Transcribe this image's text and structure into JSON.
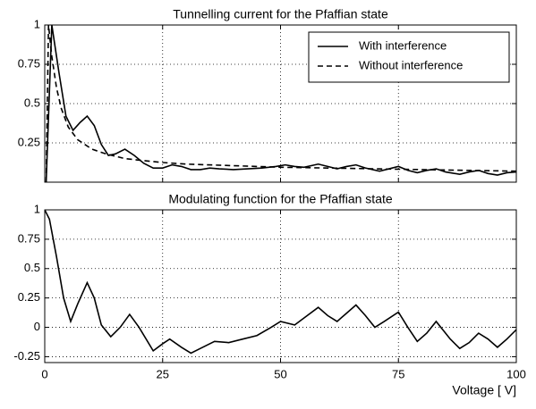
{
  "chart_data": [
    {
      "type": "line",
      "title": "Tunnelling current for the Pfaffian state",
      "xlim": [
        0,
        100
      ],
      "xticks": [
        0,
        25,
        50,
        75,
        100
      ],
      "xtick_labels": false,
      "ylim": [
        0,
        1
      ],
      "yticks": [
        0.25,
        0.5,
        0.75,
        1
      ],
      "grid": true,
      "legend": "upper right",
      "series": [
        {
          "name": "With interference",
          "color": "#000000",
          "dash": "solid",
          "x": [
            0.3,
            1.5,
            3,
            4.5,
            6,
            7.5,
            9,
            10.5,
            12,
            13.5,
            15,
            17,
            19,
            21,
            23,
            25,
            27,
            29,
            31,
            33,
            35,
            37,
            40,
            43,
            46,
            49,
            51,
            53,
            55,
            58,
            60,
            62,
            64,
            66,
            68,
            71,
            73,
            75,
            77,
            79,
            81,
            83,
            85,
            88,
            90,
            92,
            94,
            96,
            98,
            100
          ],
          "values": [
            0,
            1,
            0.7,
            0.42,
            0.33,
            0.38,
            0.42,
            0.36,
            0.24,
            0.17,
            0.18,
            0.21,
            0.17,
            0.12,
            0.09,
            0.09,
            0.11,
            0.1,
            0.08,
            0.08,
            0.09,
            0.085,
            0.08,
            0.085,
            0.09,
            0.1,
            0.11,
            0.1,
            0.095,
            0.115,
            0.1,
            0.085,
            0.1,
            0.11,
            0.09,
            0.07,
            0.085,
            0.1,
            0.075,
            0.06,
            0.075,
            0.085,
            0.065,
            0.05,
            0.065,
            0.075,
            0.055,
            0.045,
            0.06,
            0.065
          ]
        },
        {
          "name": "Without interference",
          "color": "#000000",
          "dash": "dashed",
          "x": [
            0.3,
            0.8,
            1.5,
            2.5,
            3.5,
            5,
            7,
            10,
            13,
            17,
            20,
            25,
            30,
            40,
            50,
            60,
            70,
            80,
            90,
            100
          ],
          "values": [
            0,
            1,
            0.8,
            0.6,
            0.47,
            0.35,
            0.27,
            0.21,
            0.18,
            0.15,
            0.14,
            0.125,
            0.115,
            0.105,
            0.095,
            0.09,
            0.085,
            0.08,
            0.075,
            0.07
          ]
        }
      ]
    },
    {
      "type": "line",
      "title": "Modulating function for the Pfaffian state",
      "xlabel": "Voltage [  V]",
      "xlim": [
        0,
        100
      ],
      "xticks": [
        0,
        25,
        50,
        75,
        100
      ],
      "xtick_labels": true,
      "ylim": [
        -0.3,
        1
      ],
      "yticks": [
        -0.25,
        0,
        0.25,
        0.5,
        0.75,
        1
      ],
      "grid": true,
      "series": [
        {
          "color": "#000000",
          "dash": "solid",
          "x": [
            0,
            1,
            2.5,
            4,
            5.5,
            7,
            9,
            10.5,
            12,
            14,
            16,
            18,
            20,
            23,
            25,
            26.5,
            29,
            31,
            33,
            36,
            39,
            42,
            45,
            48,
            50,
            53,
            55,
            58,
            60,
            62,
            64,
            66,
            68,
            70,
            72,
            75,
            77,
            79,
            81,
            83,
            86,
            88,
            90,
            92,
            94,
            96,
            98,
            100
          ],
          "values": [
            1,
            0.92,
            0.6,
            0.25,
            0.05,
            0.2,
            0.38,
            0.25,
            0.02,
            -0.08,
            0.0,
            0.11,
            0.0,
            -0.2,
            -0.14,
            -0.1,
            -0.17,
            -0.22,
            -0.18,
            -0.12,
            -0.13,
            -0.1,
            -0.07,
            0.0,
            0.05,
            0.02,
            0.08,
            0.17,
            0.1,
            0.05,
            0.12,
            0.19,
            0.1,
            0.0,
            0.05,
            0.13,
            0.0,
            -0.12,
            -0.05,
            0.05,
            -0.1,
            -0.18,
            -0.13,
            -0.05,
            -0.1,
            -0.17,
            -0.1,
            -0.02
          ]
        }
      ]
    }
  ]
}
